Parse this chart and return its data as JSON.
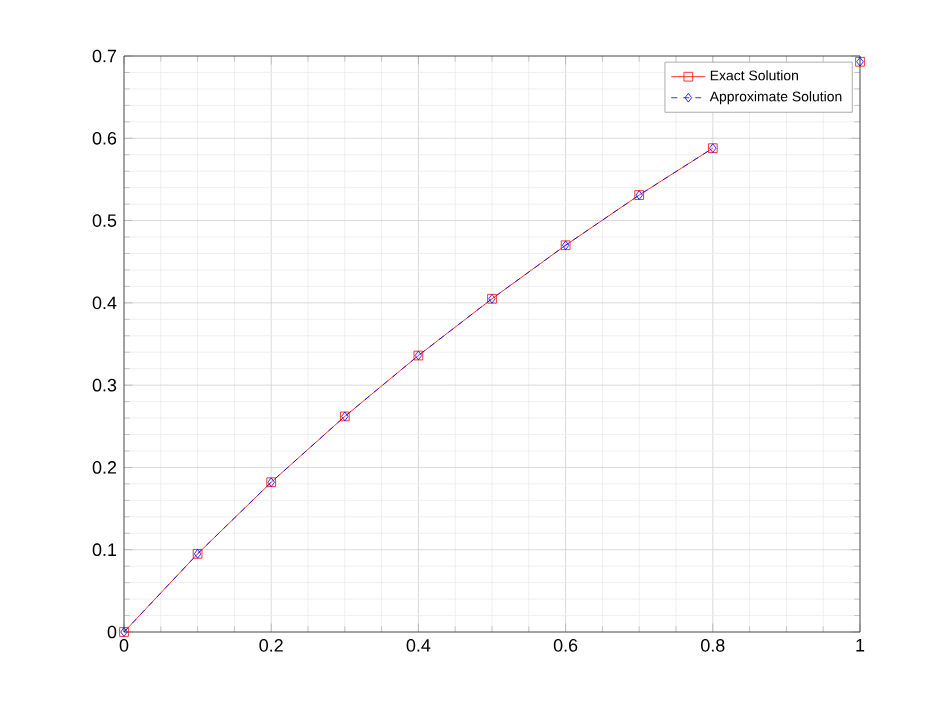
{
  "chart_data": {
    "type": "line",
    "x": [
      0,
      0.1,
      0.2,
      0.3,
      0.4,
      0.5,
      0.6,
      0.7,
      0.8,
      0.9,
      1.0
    ],
    "series": [
      {
        "name": "Exact Solution",
        "color": "#ff0000",
        "marker": "square",
        "line_style": "solid",
        "values": [
          0,
          0.095,
          0.182,
          0.262,
          0.336,
          0.405,
          0.47,
          0.531,
          0.588,
          null,
          0.693
        ]
      },
      {
        "name": "Approximate Solution",
        "color": "#0000ff",
        "marker": "diamond",
        "line_style": "dashed",
        "values": [
          0,
          0.095,
          0.182,
          0.262,
          0.336,
          0.405,
          0.47,
          0.531,
          0.588,
          null,
          0.693
        ]
      }
    ],
    "xlim": [
      0,
      1
    ],
    "ylim": [
      0,
      0.7
    ],
    "xticks": [
      0,
      0.2,
      0.4,
      0.6,
      0.8,
      1
    ],
    "yticks": [
      0,
      0.1,
      0.2,
      0.3,
      0.4,
      0.5,
      0.6,
      0.7
    ],
    "grid": true,
    "legend": "top right"
  }
}
